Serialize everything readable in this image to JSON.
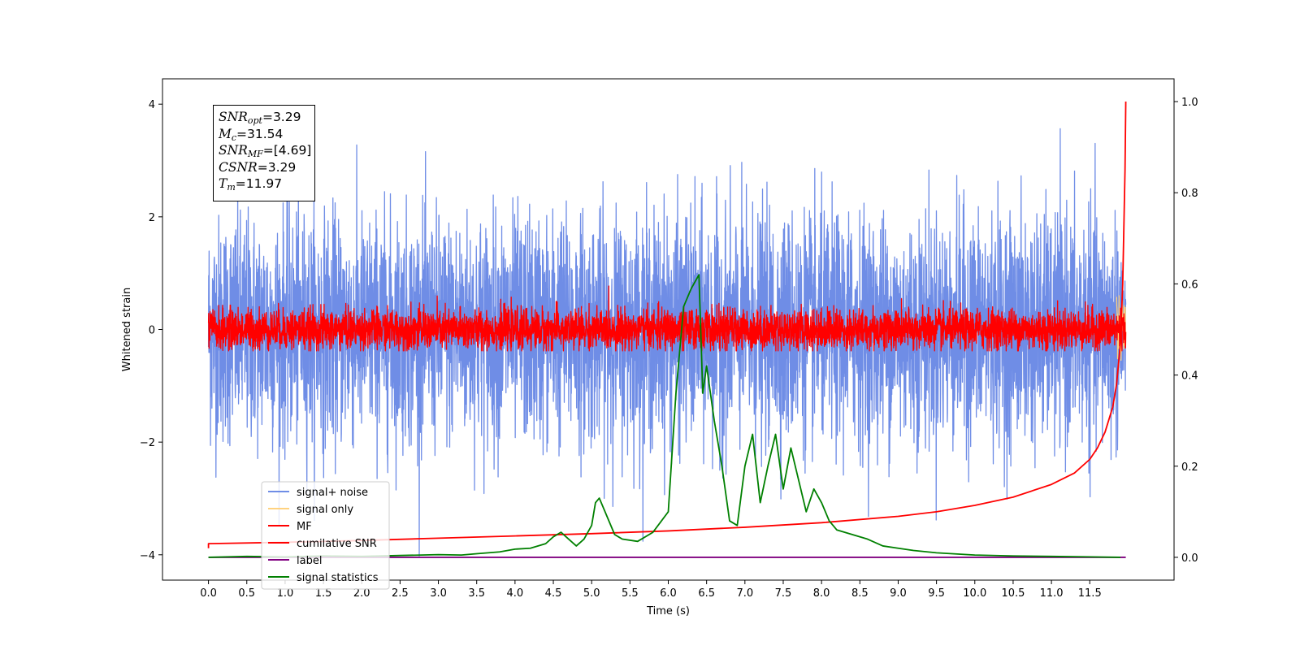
{
  "chart_data": {
    "type": "line",
    "xlabel": "Time (s)",
    "ylabel": "Whitened strain",
    "xlim": [
      -0.6,
      12.6
    ],
    "ylim": [
      -4.45,
      4.45
    ],
    "y2lim": [
      -0.05,
      1.05
    ],
    "xticks": [
      "0.0",
      "0.5",
      "1.0",
      "1.5",
      "2.0",
      "2.5",
      "3.0",
      "3.5",
      "4.0",
      "4.5",
      "5.0",
      "5.5",
      "6.0",
      "6.5",
      "7.0",
      "7.5",
      "8.0",
      "8.5",
      "9.0",
      "9.5",
      "10.0",
      "10.5",
      "11.0",
      "11.5"
    ],
    "yticks": [
      "-4",
      "-2",
      "0",
      "2",
      "4"
    ],
    "y2ticks": [
      "0.0",
      "0.2",
      "0.4",
      "0.6",
      "0.8",
      "1.0"
    ],
    "annotation": {
      "snr_opt_sym": "SNR",
      "snr_opt_sub": "opt",
      "snr_opt_val": "=3.29",
      "mc_sym": "M",
      "mc_sub": "c",
      "mc_val": "=31.54",
      "snr_mf_sym": "SNR",
      "snr_mf_sub": "MF",
      "snr_mf_val": "=[4.69]",
      "csnr_sym": "CSNR",
      "csnr_val": "=3.29",
      "tm_sym": "T",
      "tm_sub": "m",
      "tm_val": "=11.97"
    },
    "legend_position": "lower-left",
    "series": [
      {
        "name": "signal+ noise",
        "color": "#6f8de6",
        "axis": "left",
        "kind": "noise",
        "t_start": 0.0,
        "t_end": 11.97,
        "center": 0.0,
        "sigma": 1.0,
        "max": 4.03,
        "min": -4.1
      },
      {
        "name": "signal only",
        "color": "#ffd27f",
        "axis": "left",
        "kind": "noise",
        "t_start": 11.85,
        "t_end": 11.97,
        "center": 0.0,
        "sigma": 0.3,
        "max": 0.6,
        "min": -0.7
      },
      {
        "name": "MF",
        "color": "#ff0000",
        "axis": "left",
        "kind": "noise",
        "t_start": 0.0,
        "t_end": 11.97,
        "center": 0.0,
        "sigma": 0.18,
        "max": 0.8,
        "min": -0.38
      },
      {
        "name": "cumilative SNR",
        "color": "#ff0000",
        "axis": "right",
        "kind": "curve",
        "x": [
          0.0,
          0.0,
          1.0,
          2.0,
          3.0,
          4.0,
          5.0,
          6.0,
          7.0,
          8.0,
          9.0,
          9.5,
          10.0,
          10.5,
          11.0,
          11.3,
          11.5,
          11.6,
          11.7,
          11.8,
          11.85,
          11.9,
          11.93,
          11.96,
          11.97
        ],
        "y": [
          0.02,
          0.03,
          0.033,
          0.037,
          0.042,
          0.047,
          0.052,
          0.058,
          0.066,
          0.076,
          0.09,
          0.1,
          0.114,
          0.132,
          0.16,
          0.185,
          0.215,
          0.24,
          0.275,
          0.33,
          0.38,
          0.47,
          0.6,
          0.85,
          1.0
        ]
      },
      {
        "name": "label",
        "color": "#800080",
        "axis": "right",
        "kind": "curve",
        "x": [
          0.0,
          11.97
        ],
        "y": [
          0.0,
          0.0
        ]
      },
      {
        "name": "signal statistics",
        "color": "#008000",
        "axis": "right",
        "kind": "curve",
        "x": [
          0.0,
          0.5,
          1.0,
          1.5,
          2.0,
          2.5,
          3.0,
          3.3,
          3.5,
          3.8,
          4.0,
          4.2,
          4.4,
          4.5,
          4.6,
          4.7,
          4.8,
          4.9,
          5.0,
          5.05,
          5.1,
          5.2,
          5.3,
          5.4,
          5.6,
          5.8,
          6.0,
          6.1,
          6.2,
          6.3,
          6.4,
          6.45,
          6.5,
          6.6,
          6.7,
          6.8,
          6.9,
          7.0,
          7.1,
          7.2,
          7.3,
          7.4,
          7.5,
          7.6,
          7.7,
          7.8,
          7.9,
          8.0,
          8.1,
          8.2,
          8.4,
          8.6,
          8.8,
          9.0,
          9.2,
          9.5,
          10.0,
          10.5,
          11.0,
          11.5,
          11.9
        ],
        "y": [
          0.0,
          0.002,
          0.001,
          0.003,
          0.002,
          0.004,
          0.006,
          0.005,
          0.008,
          0.012,
          0.018,
          0.02,
          0.03,
          0.045,
          0.055,
          0.04,
          0.025,
          0.04,
          0.07,
          0.12,
          0.13,
          0.09,
          0.05,
          0.04,
          0.035,
          0.055,
          0.1,
          0.36,
          0.55,
          0.59,
          0.62,
          0.36,
          0.42,
          0.3,
          0.2,
          0.08,
          0.07,
          0.2,
          0.27,
          0.12,
          0.2,
          0.27,
          0.15,
          0.24,
          0.17,
          0.1,
          0.15,
          0.12,
          0.08,
          0.06,
          0.05,
          0.04,
          0.025,
          0.02,
          0.015,
          0.01,
          0.005,
          0.003,
          0.002,
          0.001,
          0.0
        ]
      }
    ]
  }
}
